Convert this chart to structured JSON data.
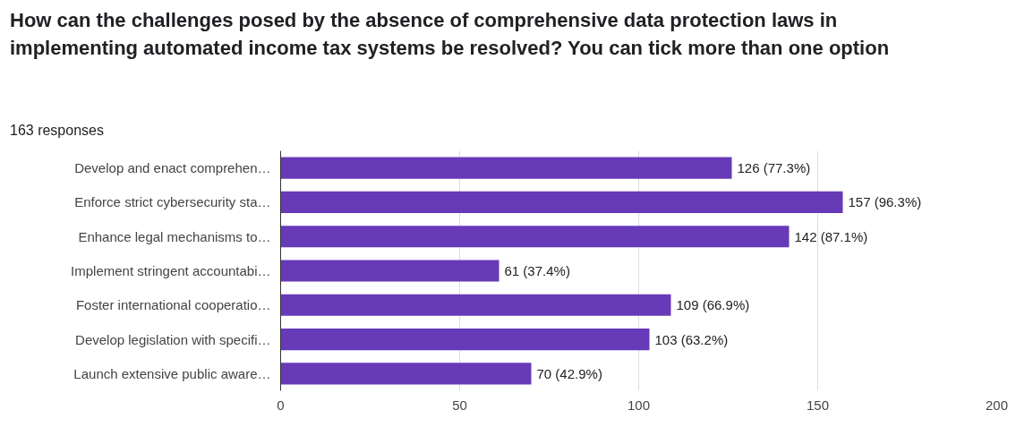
{
  "chart_data": {
    "type": "bar",
    "orientation": "horizontal",
    "title": "How can the challenges posed by the absence of comprehensive data protection laws in implementing automated income tax systems be resolved? You can tick more than one option",
    "subtitle": "163 responses",
    "categories": [
      "Develop and enact comprehen…",
      "Enforce strict cybersecurity sta…",
      "Enhance legal mechanisms to…",
      "Implement stringent accountabi…",
      "Foster international cooperatio…",
      "Develop legislation with specifi…",
      "Launch extensive public aware…"
    ],
    "values": [
      126,
      157,
      142,
      61,
      109,
      103,
      70
    ],
    "value_labels": [
      "126 (77.3%)",
      "157 (96.3%)",
      "142 (87.1%)",
      "61 (37.4%)",
      "109 (66.9%)",
      "103 (63.2%)",
      "70 (42.9%)"
    ],
    "color": "#673ab7",
    "xlim": [
      0,
      200
    ],
    "xticks": [
      0,
      50,
      100,
      150,
      200
    ],
    "grid": "x"
  }
}
